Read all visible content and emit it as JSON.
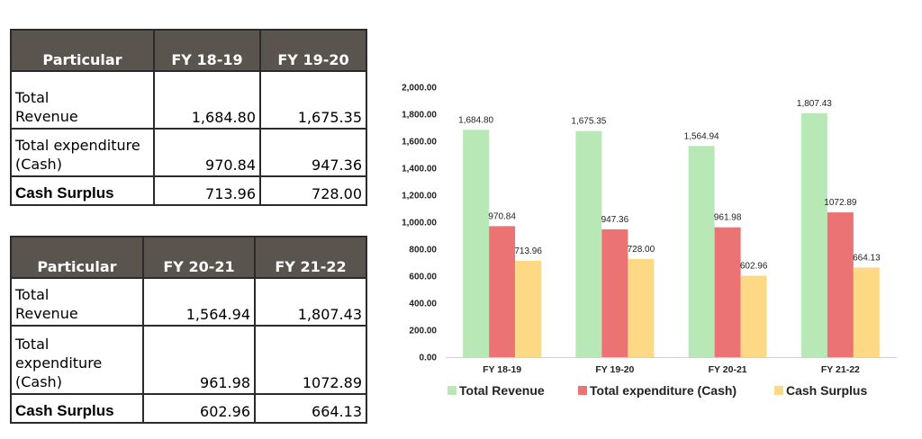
{
  "tables": [
    {
      "headers": [
        "Particular",
        "FY 18-19",
        "FY 19-20"
      ],
      "rows": [
        {
          "label": "Total\nRevenue",
          "values": [
            "1,684.80",
            "1,675.35"
          ]
        },
        {
          "label": "Total expenditure\n(Cash)",
          "values": [
            "970.84",
            "947.36"
          ]
        },
        {
          "label": "Cash Surplus",
          "values": [
            "713.96",
            "728.00"
          ]
        }
      ]
    },
    {
      "headers": [
        "Particular",
        "FY 20-21",
        "FY 21-22"
      ],
      "rows": [
        {
          "label": "Total\nRevenue",
          "values": [
            "1,564.94",
            "1,807.43"
          ]
        },
        {
          "label": "Total\nexpenditure\n(Cash)",
          "values": [
            "961.98",
            "1072.89"
          ]
        },
        {
          "label": "Cash Surplus",
          "values": [
            "602.96",
            "664.13"
          ]
        }
      ]
    }
  ],
  "chart_data": {
    "type": "bar",
    "title": "",
    "xlabel": "",
    "ylabel": "",
    "categories": [
      "FY 18-19",
      "FY 19-20",
      "FY 20-21",
      "FY 21-22"
    ],
    "ylim": [
      0,
      2000
    ],
    "yticks": [
      "0.00",
      "200.00",
      "400.00",
      "600.00",
      "800.00",
      "1,000.00",
      "1,200.00",
      "1,400.00",
      "1,600.00",
      "1,800.00",
      "2,000.00"
    ],
    "grid": false,
    "legend": "bottom",
    "series": [
      {
        "name": "Total Revenue",
        "color": "#b9e8b7",
        "values": [
          1684.8,
          1675.35,
          1564.94,
          1807.43
        ],
        "labels": [
          "1,684.80",
          "1,675.35",
          "1,564.94",
          "1,807.43"
        ]
      },
      {
        "name": "Total expenditure (Cash)",
        "color": "#ec7373",
        "values": [
          970.84,
          947.36,
          961.98,
          1072.89
        ],
        "labels": [
          "970.84",
          "947.36",
          "961.98",
          "1072.89"
        ]
      },
      {
        "name": "Cash Surplus",
        "color": "#fdd985",
        "values": [
          713.96,
          728.0,
          602.96,
          664.13
        ],
        "labels": [
          "713.96",
          "728.00",
          "602.96",
          "664.13"
        ]
      }
    ]
  }
}
